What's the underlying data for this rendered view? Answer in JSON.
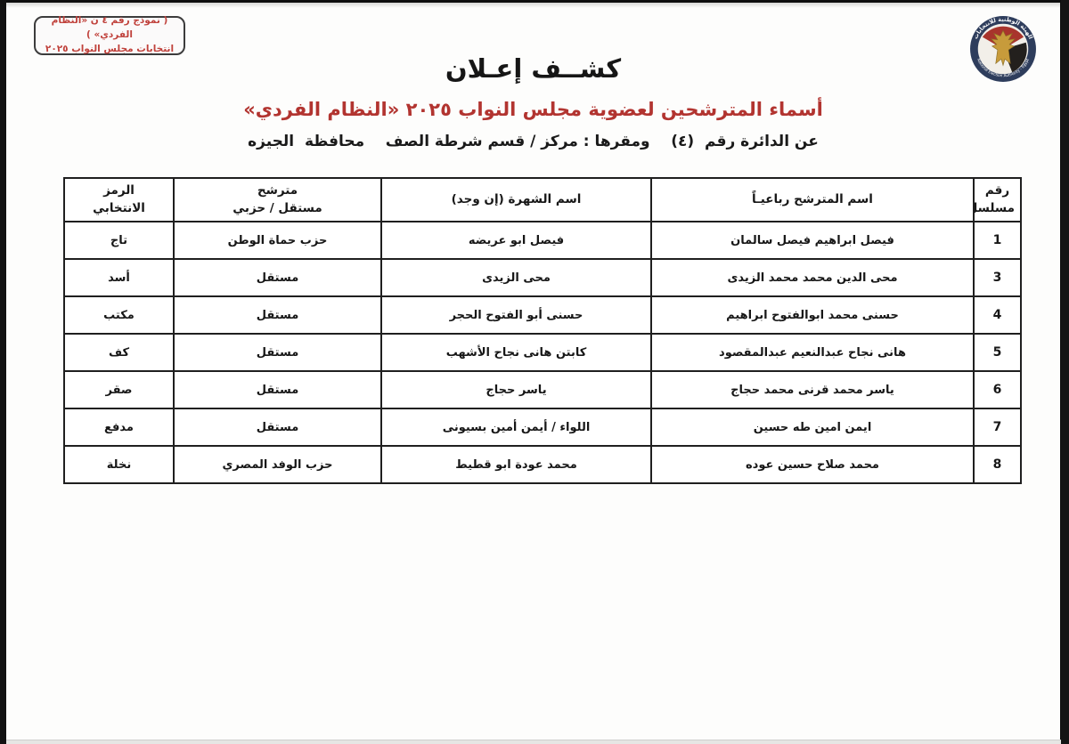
{
  "colors": {
    "accent_red": "#b23430",
    "table_border": "#1f1f1f",
    "logo_ring_navy": "#2e3d5c",
    "logo_red": "#a8342c",
    "logo_gold": "#c79b3b"
  },
  "form_box": {
    "line1": "( نموذج رقم ٤ ن «النظام الفردي» )",
    "line2": "انتخابات مجلس النواب ٢٠٢٥"
  },
  "logo": {
    "icon": "egypt-eagle-emblem",
    "arabic_text": "الهيئة الوطنية للانتخابات",
    "english_text": "National Election Authority - Egypt"
  },
  "header": {
    "title": "كشــف إعـلان",
    "subtitle": "أسماء المترشحين لعضوية مجلس النواب ٢٠٢٥ «النظام الفردي»",
    "district_line": "عن الدائرة رقم  (٤)    ومقرها : مركز / قسم شرطة الصف    محافظة  الجيزه"
  },
  "table": {
    "columns": [
      "رقم\nمسلسل",
      "اسم المترشح رباعيـاً",
      "اسم الشهرة (إن وجد)",
      "مترشح\nمستقل / حزبي",
      "الرمز\nالانتخابي"
    ],
    "rows": [
      {
        "serial": "1",
        "full_name": "فيصل ابراهيم فيصل سالمان",
        "known_as": "فيصل ابو عريضه",
        "affiliation": "حزب حماة الوطن",
        "symbol": "تاج"
      },
      {
        "serial": "3",
        "full_name": "محى الدين محمد محمد الزيدى",
        "known_as": "محى الزيدى",
        "affiliation": "مستقل",
        "symbol": "أسد"
      },
      {
        "serial": "4",
        "full_name": "حسنى محمد ابوالفتوح ابراهيم",
        "known_as": "حسنى أبو الفتوح الحجر",
        "affiliation": "مستقل",
        "symbol": "مكتب"
      },
      {
        "serial": "5",
        "full_name": "هانى نجاح عبدالنعيم عبدالمقصود",
        "known_as": "كابتن هانى نجاح الأشهب",
        "affiliation": "مستقل",
        "symbol": "كف"
      },
      {
        "serial": "6",
        "full_name": "ياسر محمد قرنى محمد حجاج",
        "known_as": "ياسر حجاج",
        "affiliation": "مستقل",
        "symbol": "صقر"
      },
      {
        "serial": "7",
        "full_name": "ايمن امين طه حسين",
        "known_as": "اللواء / أيمن أمين بسيونى",
        "affiliation": "مستقل",
        "symbol": "مدفع"
      },
      {
        "serial": "8",
        "full_name": "محمد صلاح حسين عوده",
        "known_as": "محمد عودة ابو قطيط",
        "affiliation": "حزب الوفد المصري",
        "symbol": "نخلة"
      }
    ]
  }
}
